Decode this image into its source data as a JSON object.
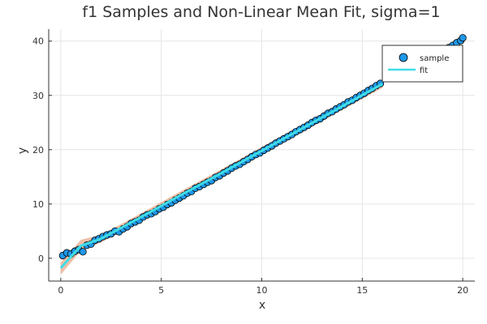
{
  "chart_data": {
    "type": "scatter",
    "title": "f1 Samples and Non-Linear Mean Fit, sigma=1",
    "xlabel": "x",
    "ylabel": "y",
    "xlim": [
      -0.6,
      20.6
    ],
    "ylim": [
      -4.2,
      42.2
    ],
    "xticks": [
      0,
      5,
      10,
      15,
      20
    ],
    "yticks": [
      0,
      10,
      20,
      30,
      40
    ],
    "grid": true,
    "legend_position": "top-right",
    "colors": {
      "sample": "#1f98e8",
      "fit": "#3fdde6",
      "band": "#e3895f",
      "grid": "#e6e6e6",
      "axis": "#333333"
    },
    "series": [
      {
        "name": "sample",
        "kind": "scatter",
        "x": [
          0.1,
          0.3,
          0.5,
          0.7,
          0.9,
          1.1,
          1.3,
          1.5,
          1.7,
          1.9,
          2.1,
          2.3,
          2.5,
          2.7,
          2.9,
          3.1,
          3.3,
          3.5,
          3.7,
          3.9,
          4.1,
          4.3,
          4.5,
          4.7,
          4.9,
          5.1,
          5.3,
          5.5,
          5.7,
          5.9,
          6.1,
          6.3,
          6.5,
          6.7,
          6.9,
          7.1,
          7.3,
          7.5,
          7.7,
          7.9,
          8.1,
          8.3,
          8.5,
          8.7,
          8.9,
          9.1,
          9.3,
          9.5,
          9.7,
          9.9,
          10.1,
          10.3,
          10.5,
          10.7,
          10.9,
          11.1,
          11.3,
          11.5,
          11.7,
          11.9,
          12.1,
          12.3,
          12.5,
          12.7,
          12.9,
          13.1,
          13.3,
          13.5,
          13.7,
          13.9,
          14.1,
          14.3,
          14.5,
          14.7,
          14.9,
          15.1,
          15.3,
          15.5,
          15.7,
          15.9,
          19.3,
          19.5,
          19.7,
          19.9,
          20.0
        ],
        "y": [
          0.5,
          1.0,
          0.8,
          1.3,
          1.6,
          1.2,
          2.4,
          2.6,
          3.3,
          3.6,
          4.0,
          4.3,
          4.5,
          5.0,
          4.9,
          5.4,
          5.8,
          6.4,
          6.7,
          7.0,
          7.6,
          8.0,
          8.2,
          8.6,
          9.1,
          9.4,
          9.9,
          10.2,
          10.7,
          11.1,
          11.5,
          12.0,
          12.3,
          12.9,
          13.2,
          13.6,
          14.0,
          14.3,
          14.9,
          15.2,
          15.7,
          16.1,
          16.6,
          17.0,
          17.3,
          17.8,
          18.2,
          18.7,
          19.1,
          19.4,
          19.9,
          20.3,
          20.7,
          21.2,
          21.6,
          22.0,
          22.4,
          22.8,
          23.3,
          23.7,
          24.1,
          24.5,
          25.0,
          25.4,
          25.7,
          26.2,
          26.7,
          27.0,
          27.5,
          27.9,
          28.3,
          28.8,
          29.1,
          29.6,
          30.0,
          30.4,
          30.9,
          31.3,
          31.8,
          32.2,
          38.8,
          39.2,
          39.7,
          40.1,
          40.6
        ]
      },
      {
        "name": "fit",
        "kind": "line",
        "x": [
          0.0,
          1.0,
          2.0,
          4.0,
          6.0,
          8.0,
          10.0,
          12.0,
          14.0,
          16.0
        ],
        "y": [
          -1.8,
          2.3,
          3.6,
          7.6,
          11.7,
          15.7,
          19.8,
          23.9,
          28.0,
          32.1
        ]
      },
      {
        "name": "band",
        "kind": "band",
        "x": [
          0.0,
          1.0,
          2.0,
          4.0,
          6.0,
          8.0,
          10.0,
          12.0,
          14.0,
          16.0
        ],
        "lower": [
          -3.0,
          1.4,
          2.9,
          6.9,
          11.0,
          15.0,
          19.1,
          23.2,
          27.3,
          31.4
        ],
        "upper": [
          -0.8,
          3.4,
          4.3,
          8.3,
          12.4,
          16.4,
          20.5,
          24.6,
          28.7,
          32.8
        ]
      }
    ]
  }
}
